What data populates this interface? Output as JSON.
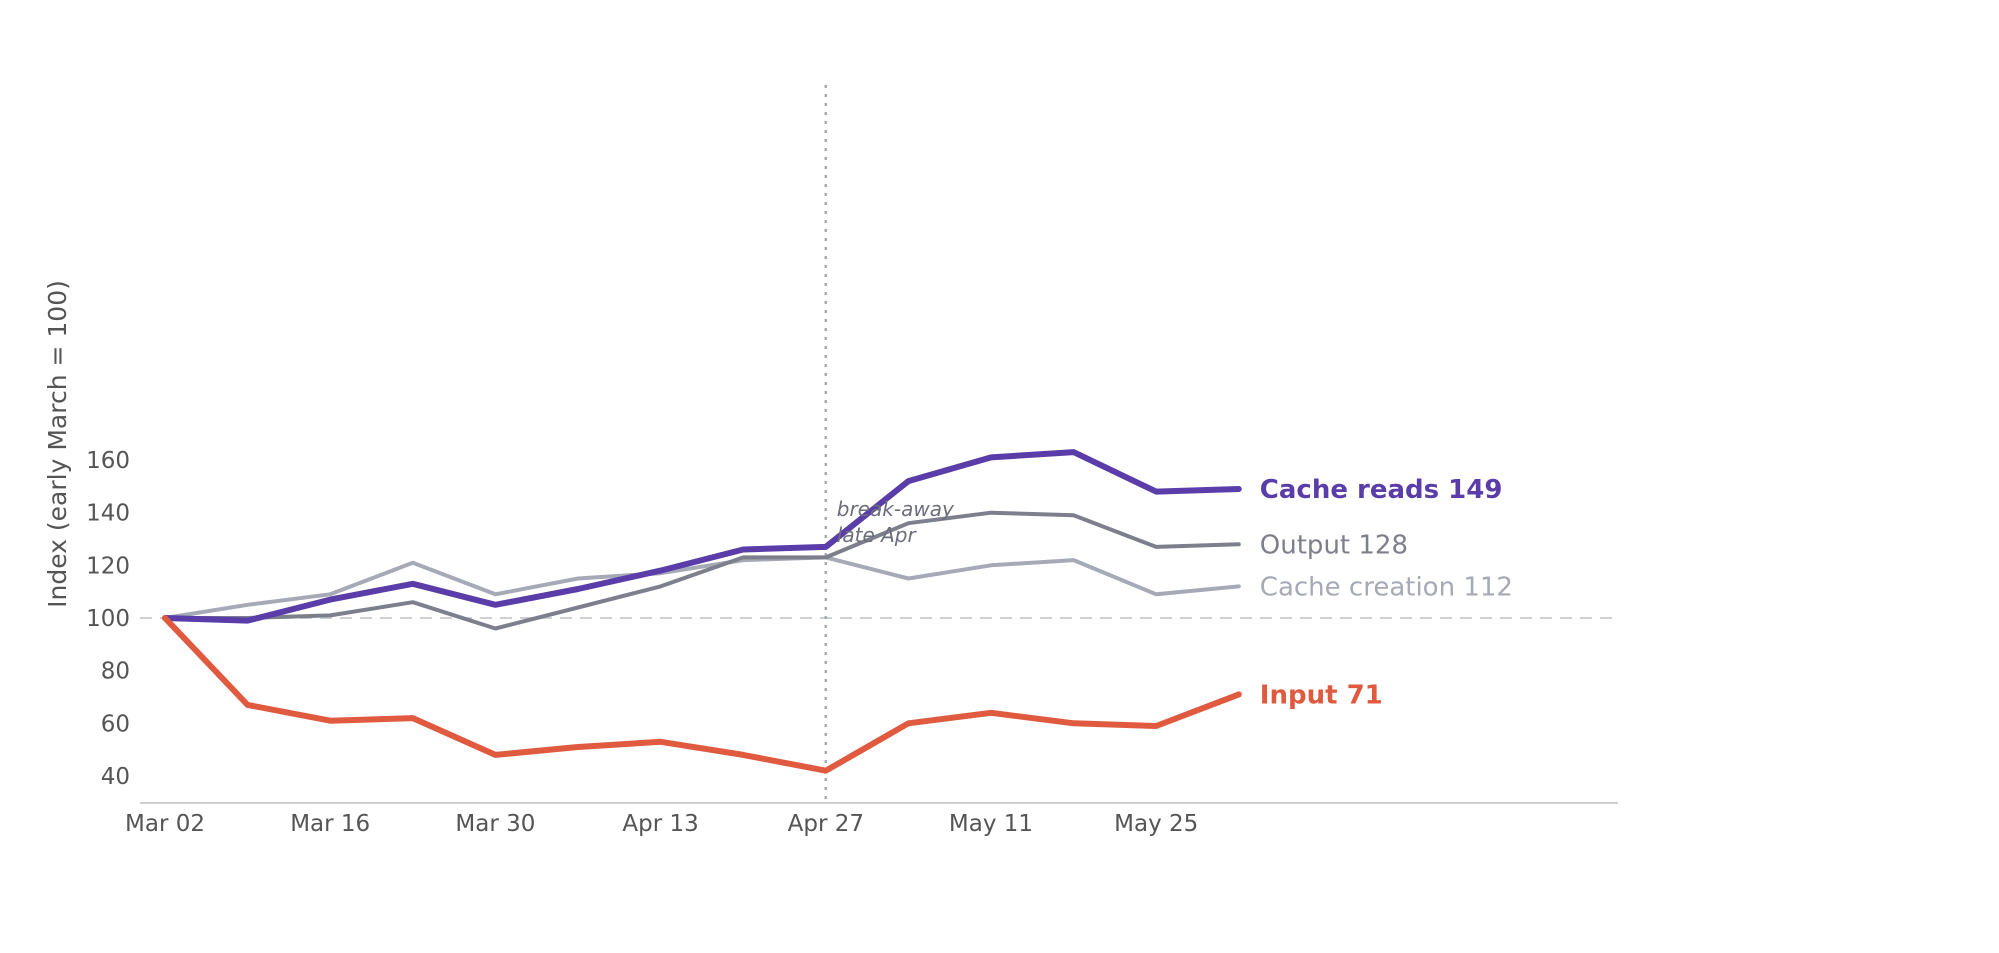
{
  "chart_data": {
    "type": "line",
    "ylabel": "Index (early March = 100)",
    "xlabel": "",
    "ylim": [
      35,
      172
    ],
    "yticks": [
      40,
      60,
      80,
      100,
      120,
      140,
      160
    ],
    "x_tick_labels": [
      "Mar 02",
      "Mar 16",
      "Mar 30",
      "Apr 13",
      "Apr 27",
      "May 11",
      "May 25"
    ],
    "x": [
      "Mar 02",
      "Mar 09",
      "Mar 16",
      "Mar 23",
      "Mar 30",
      "Apr 06",
      "Apr 13",
      "Apr 20",
      "Apr 27",
      "May 04",
      "May 11",
      "May 18",
      "May 25",
      "Jun 01"
    ],
    "grid": false,
    "baseline": 100,
    "series": [
      {
        "name": "Cache creation",
        "end_value": "112",
        "color": "#a6a9b6",
        "bold": false,
        "values": [
          100,
          105,
          109,
          121,
          109,
          115,
          117,
          122,
          123,
          115,
          120,
          122,
          109,
          112
        ]
      },
      {
        "name": "Output",
        "end_value": "128",
        "color": "#7d808c",
        "bold": false,
        "values": [
          100,
          100,
          101,
          106,
          96,
          104,
          112,
          123,
          123,
          136,
          140,
          139,
          127,
          128
        ]
      },
      {
        "name": "Cache reads",
        "end_value": "149",
        "color": "#5a3da8",
        "bold": true,
        "values": [
          100,
          99,
          107,
          113,
          105,
          111,
          118,
          126,
          127,
          152,
          161,
          163,
          148,
          149
        ]
      },
      {
        "name": "Input",
        "end_value": "71",
        "color": "#e05a40",
        "bold": true,
        "values": [
          100,
          67,
          61,
          62,
          48,
          51,
          53,
          48,
          42,
          60,
          64,
          60,
          59,
          71
        ]
      }
    ],
    "annotation": {
      "x": "Apr 27",
      "lines": [
        "break-away",
        "late Apr"
      ]
    }
  }
}
